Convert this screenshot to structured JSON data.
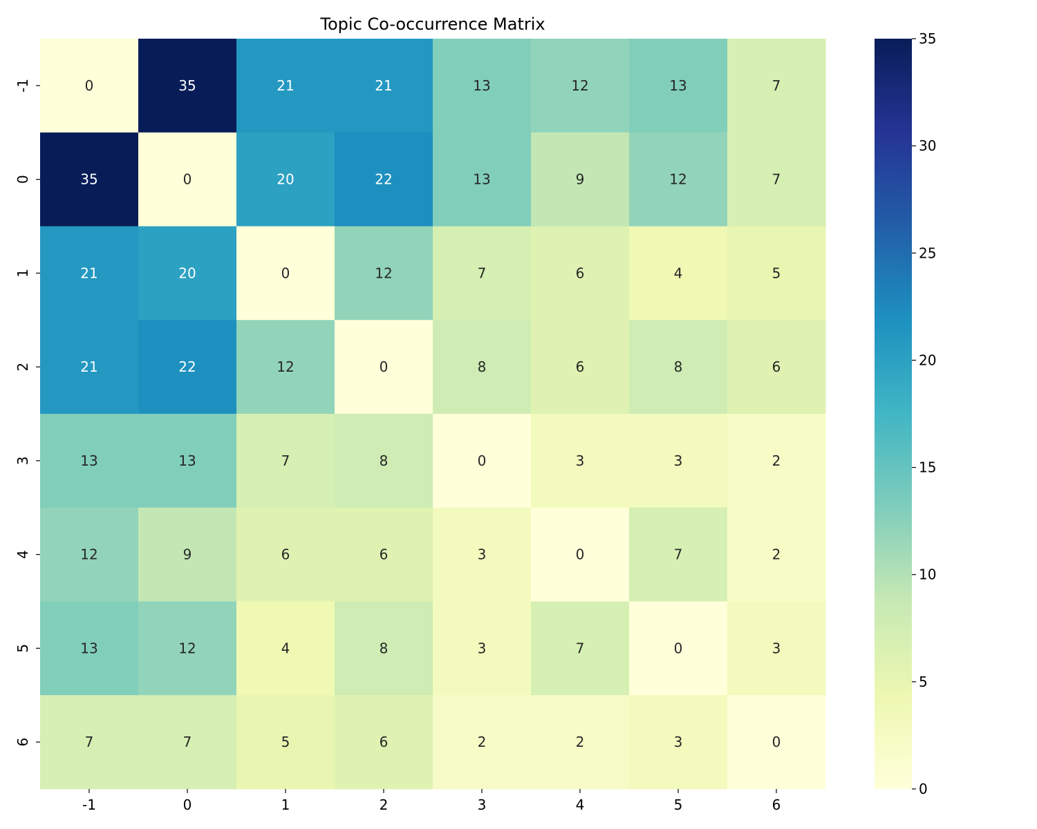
{
  "chart_data": {
    "type": "heatmap",
    "title": "Topic Co-occurrence Matrix",
    "xlabel": "",
    "ylabel": "",
    "x_categories": [
      "-1",
      "0",
      "1",
      "2",
      "3",
      "4",
      "5",
      "6"
    ],
    "y_categories": [
      "-1",
      "0",
      "1",
      "2",
      "3",
      "4",
      "5",
      "6"
    ],
    "values": [
      [
        0,
        35,
        21,
        21,
        13,
        12,
        13,
        7
      ],
      [
        35,
        0,
        20,
        22,
        13,
        9,
        12,
        7
      ],
      [
        21,
        20,
        0,
        12,
        7,
        6,
        4,
        5
      ],
      [
        21,
        22,
        12,
        0,
        8,
        6,
        8,
        6
      ],
      [
        13,
        13,
        7,
        8,
        0,
        3,
        3,
        2
      ],
      [
        12,
        9,
        6,
        6,
        3,
        0,
        7,
        2
      ],
      [
        13,
        12,
        4,
        8,
        3,
        7,
        0,
        3
      ],
      [
        7,
        7,
        5,
        6,
        2,
        2,
        3,
        0
      ]
    ],
    "value_range": [
      0,
      35
    ],
    "colormap": "YlGnBu",
    "colorbar_ticks": [
      "0",
      "5",
      "10",
      "15",
      "20",
      "25",
      "30",
      "35"
    ],
    "annotated": true,
    "grid": false,
    "legend": "colorbar-right"
  }
}
